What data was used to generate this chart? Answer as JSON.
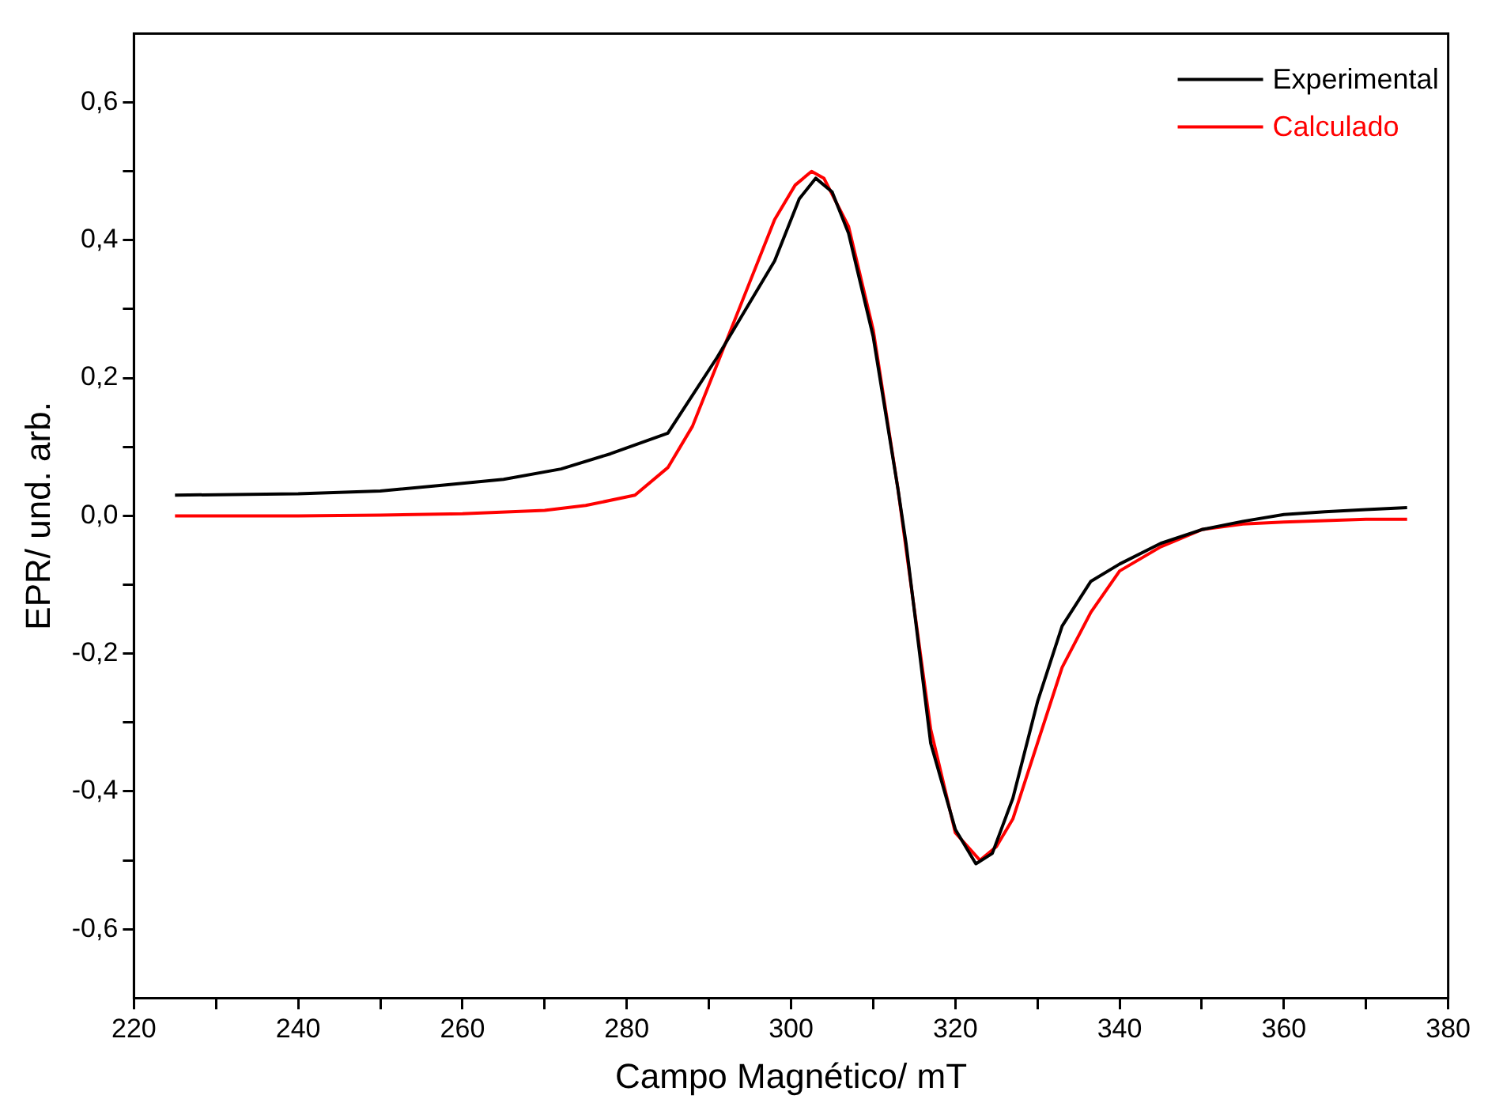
{
  "chart_data": {
    "type": "line",
    "xlabel": "Campo Magnético/ mT",
    "ylabel": "EPR/ und. arb.",
    "xlim": [
      220,
      380
    ],
    "ylim": [
      -0.7,
      0.7
    ],
    "xticks": [
      220,
      {
        "value": 230,
        "label": null
      },
      240,
      {
        "value": 250,
        "label": null
      },
      260,
      {
        "value": 270,
        "label": null
      },
      280,
      {
        "value": 290,
        "label": null
      },
      300,
      {
        "value": 310,
        "label": null
      },
      320,
      {
        "value": 330,
        "label": null
      },
      340,
      {
        "value": 350,
        "label": null
      },
      360,
      {
        "value": 370,
        "label": null
      },
      380
    ],
    "yticks": [
      {
        "value": -0.6,
        "label": "-0,6"
      },
      {
        "value": -0.5,
        "label": null
      },
      {
        "value": -0.4,
        "label": "-0,4"
      },
      {
        "value": -0.3,
        "label": null
      },
      {
        "value": -0.2,
        "label": "-0,2"
      },
      {
        "value": -0.1,
        "label": null
      },
      {
        "value": 0,
        "label": "0,0"
      },
      {
        "value": 0.1,
        "label": null
      },
      {
        "value": 0.2,
        "label": "0,2"
      },
      {
        "value": 0.3,
        "label": null
      },
      {
        "value": 0.4,
        "label": "0,4"
      },
      {
        "value": 0.5,
        "label": null
      },
      {
        "value": 0.6,
        "label": "0,6"
      }
    ],
    "grid": false,
    "legend": "top right",
    "marker": "none",
    "line_style": "solid",
    "series": [
      {
        "name": "Experimental",
        "color": "#000000",
        "x": [
          225,
          240,
          250,
          258,
          265,
          272,
          278,
          285,
          291,
          295,
          298,
          301,
          303,
          305,
          307,
          310,
          313,
          314,
          317,
          320,
          322.5,
          324.5,
          327,
          330,
          333,
          336.5,
          340,
          345,
          350,
          355,
          360,
          365,
          370,
          375
        ],
        "values": [
          0.03,
          0.032,
          0.036,
          0.045,
          0.053,
          0.068,
          0.09,
          0.12,
          0.23,
          0.31,
          0.37,
          0.46,
          0.49,
          0.47,
          0.41,
          0.26,
          0.04,
          -0.04,
          -0.33,
          -0.455,
          -0.505,
          -0.49,
          -0.41,
          -0.27,
          -0.16,
          -0.095,
          -0.07,
          -0.04,
          -0.02,
          -0.008,
          0.002,
          0.006,
          0.009,
          0.012
        ]
      },
      {
        "name": "Calculado",
        "color": "#ff0000",
        "x": [
          225,
          240,
          250,
          260,
          270,
          275,
          281,
          285,
          288,
          291,
          295,
          298,
          300.5,
          302.5,
          304,
          307,
          310,
          313,
          317,
          320,
          323,
          325,
          327,
          330,
          333,
          336.5,
          340,
          345,
          350,
          355,
          360,
          365,
          370,
          375
        ],
        "values": [
          0,
          0,
          0.001,
          0.003,
          0.008,
          0.015,
          0.03,
          0.07,
          0.13,
          0.22,
          0.34,
          0.43,
          0.48,
          0.5,
          0.49,
          0.42,
          0.27,
          0.04,
          -0.31,
          -0.46,
          -0.5,
          -0.48,
          -0.44,
          -0.33,
          -0.22,
          -0.14,
          -0.08,
          -0.045,
          -0.02,
          -0.012,
          -0.009,
          -0.007,
          -0.005,
          -0.005
        ]
      }
    ]
  }
}
